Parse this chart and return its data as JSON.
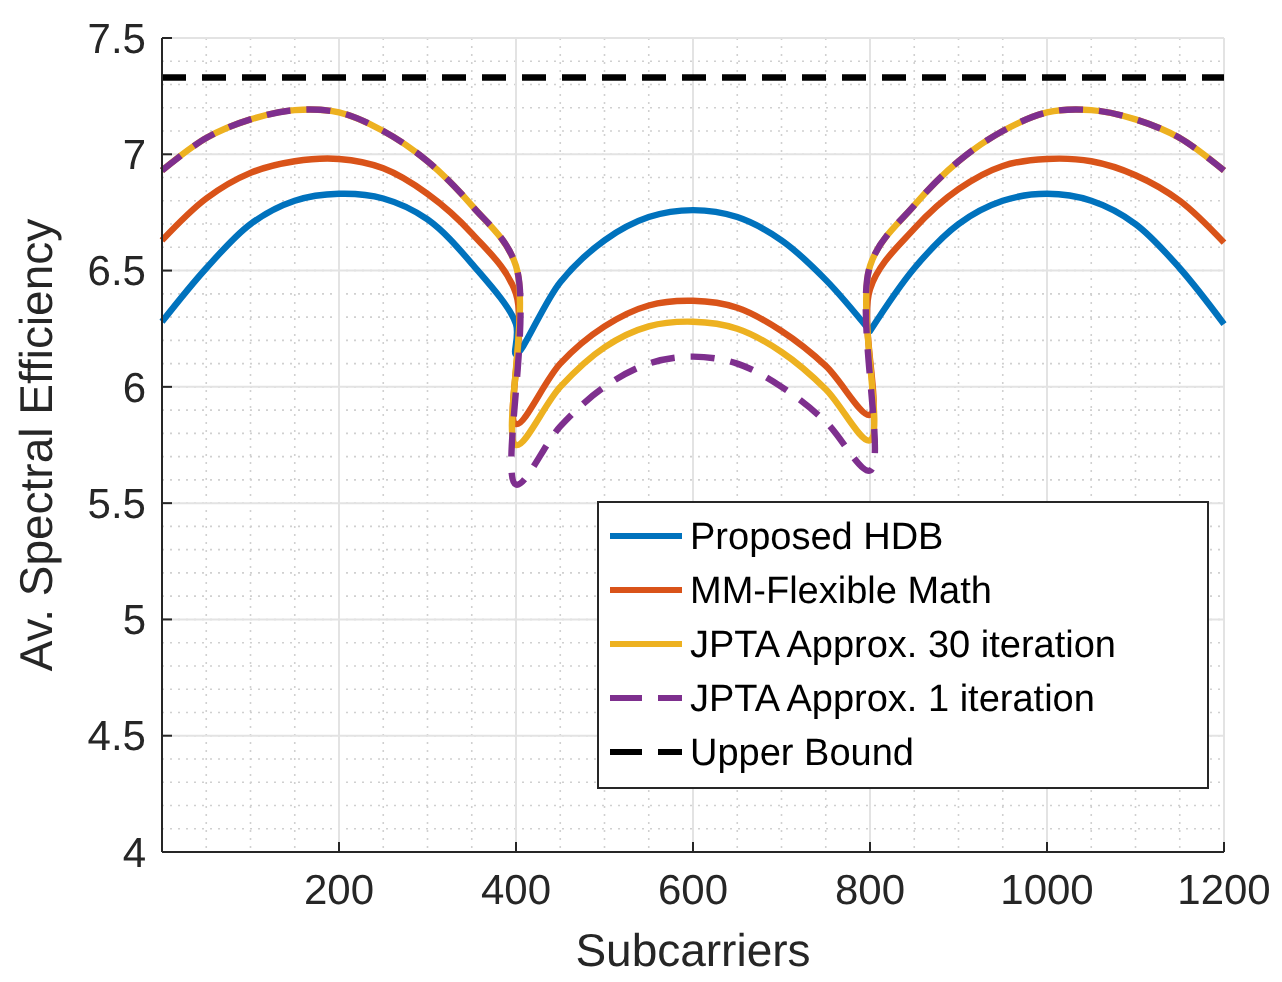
{
  "chart_data": {
    "type": "line",
    "xlabel": "Subcarriers",
    "ylabel": "Av. Spectral Efficiency",
    "xlim": [
      0,
      1200
    ],
    "xticks": [
      200,
      400,
      600,
      800,
      1000,
      1200
    ],
    "ylim": [
      4,
      7.5
    ],
    "yticks": [
      4,
      4.5,
      5,
      5.5,
      6,
      6.5,
      7,
      7.5
    ],
    "grid": true,
    "legend": "bottom right",
    "series": [
      {
        "name": "Proposed HDB",
        "color": "#0072bd",
        "x": [
          0,
          50,
          100,
          150,
          200,
          250,
          300,
          350,
          400,
          400,
          450,
          500,
          550,
          600,
          650,
          700,
          750,
          800,
          800,
          850,
          900,
          950,
          1000,
          1050,
          1100,
          1150,
          1200
        ],
        "values": [
          6.28,
          6.51,
          6.7,
          6.8,
          6.83,
          6.81,
          6.72,
          6.53,
          6.27,
          6.14,
          6.45,
          6.63,
          6.73,
          6.76,
          6.73,
          6.63,
          6.46,
          6.24,
          6.24,
          6.51,
          6.7,
          6.8,
          6.83,
          6.8,
          6.7,
          6.51,
          6.27
        ]
      },
      {
        "name": "MM-Flexible Math",
        "color": "#d95319",
        "x": [
          0,
          50,
          100,
          150,
          200,
          250,
          300,
          350,
          400,
          400,
          450,
          500,
          550,
          600,
          650,
          700,
          750,
          800,
          800,
          850,
          900,
          950,
          1000,
          1050,
          1100,
          1150,
          1200
        ],
        "values": [
          6.63,
          6.81,
          6.92,
          6.97,
          6.98,
          6.94,
          6.83,
          6.66,
          6.4,
          5.84,
          6.1,
          6.26,
          6.35,
          6.37,
          6.34,
          6.24,
          6.09,
          5.88,
          6.42,
          6.68,
          6.85,
          6.95,
          6.98,
          6.97,
          6.91,
          6.8,
          6.62
        ]
      },
      {
        "name": "JPTA Approx. 30 iteration",
        "color": "#edb120",
        "x": [
          0,
          50,
          100,
          150,
          200,
          250,
          300,
          350,
          400,
          400,
          450,
          500,
          550,
          600,
          650,
          700,
          750,
          800,
          800,
          850,
          900,
          950,
          1000,
          1050,
          1100,
          1150,
          1200
        ],
        "values": [
          6.93,
          7.07,
          7.15,
          7.19,
          7.18,
          7.1,
          6.97,
          6.78,
          6.52,
          5.75,
          6.0,
          6.17,
          6.26,
          6.28,
          6.25,
          6.15,
          5.99,
          5.77,
          6.52,
          6.78,
          6.97,
          7.1,
          7.18,
          7.19,
          7.15,
          7.07,
          6.93
        ]
      },
      {
        "name": "JPTA Approx. 1 iteration",
        "color": "#7e2f8e",
        "line_style": "dashed",
        "x": [
          0,
          50,
          100,
          150,
          200,
          250,
          300,
          350,
          400,
          400,
          450,
          500,
          550,
          600,
          650,
          700,
          750,
          800,
          800,
          850,
          900,
          950,
          1000,
          1050,
          1100,
          1150,
          1200
        ],
        "values": [
          6.93,
          7.07,
          7.15,
          7.19,
          7.18,
          7.1,
          6.97,
          6.78,
          6.52,
          5.58,
          5.83,
          6.0,
          6.1,
          6.13,
          6.1,
          6.0,
          5.85,
          5.64,
          6.52,
          6.78,
          6.97,
          7.1,
          7.18,
          7.19,
          7.15,
          7.07,
          6.93
        ]
      },
      {
        "name": "Upper Bound",
        "color": "#000000",
        "line_style": "dashed",
        "x": [
          0,
          1200
        ],
        "values": [
          7.33,
          7.33
        ]
      }
    ]
  }
}
